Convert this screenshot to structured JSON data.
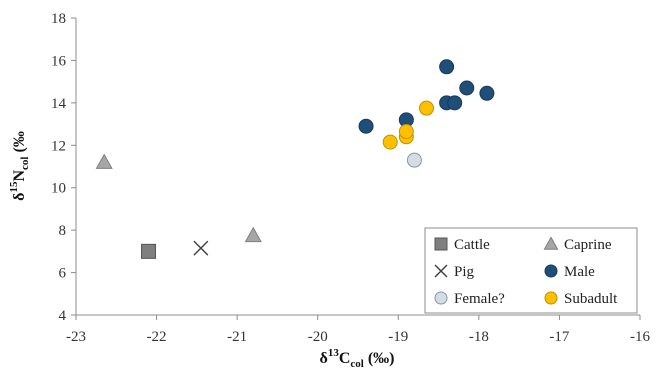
{
  "chart_data": {
    "type": "scatter",
    "xlabel": {
      "main": "δ",
      "sup": "13",
      "mid": "C",
      "sub": "col",
      "tail": " (‰)"
    },
    "ylabel": {
      "main": "δ",
      "sup": "15",
      "mid": "N",
      "sub": "col",
      "tail": " (‰"
    },
    "xlim": [
      -23,
      -16
    ],
    "ylim": [
      4,
      18
    ],
    "x_ticks": [
      -23,
      -22,
      -21,
      -20,
      -19,
      -18,
      -17,
      -16
    ],
    "y_ticks": [
      4,
      6,
      8,
      10,
      12,
      14,
      16,
      18
    ],
    "grid": false,
    "legend_position": "bottom-right",
    "series": [
      {
        "name": "Cattle",
        "marker": "square",
        "color": "#7f7f7f",
        "stroke": "#555555",
        "points": [
          [
            -22.1,
            7.0
          ]
        ]
      },
      {
        "name": "Caprine",
        "marker": "triangle",
        "color": "#a6a6a6",
        "stroke": "#7f7f7f",
        "points": [
          [
            -22.65,
            11.2
          ],
          [
            -20.8,
            7.75
          ]
        ]
      },
      {
        "name": "Pig",
        "marker": "x",
        "color": "#404040",
        "stroke": "#404040",
        "points": [
          [
            -21.45,
            7.15
          ]
        ]
      },
      {
        "name": "Male",
        "marker": "circle",
        "color": "#1f4e79",
        "stroke": "#163a5c",
        "points": [
          [
            -19.4,
            12.9
          ],
          [
            -18.9,
            13.2
          ],
          [
            -18.4,
            15.7
          ],
          [
            -18.4,
            14.0
          ],
          [
            -18.3,
            14.0
          ],
          [
            -18.15,
            14.7
          ],
          [
            -17.9,
            14.45
          ]
        ]
      },
      {
        "name": "Female?",
        "marker": "circle",
        "color": "#d6dce4",
        "stroke": "#8496b0",
        "points": [
          [
            -18.8,
            11.3
          ]
        ]
      },
      {
        "name": "Subadult",
        "marker": "circle",
        "color": "#ffc000",
        "stroke": "#bf9000",
        "points": [
          [
            -19.1,
            12.15
          ],
          [
            -18.9,
            12.4
          ],
          [
            -18.9,
            12.65
          ],
          [
            -18.65,
            13.75
          ]
        ]
      }
    ]
  }
}
